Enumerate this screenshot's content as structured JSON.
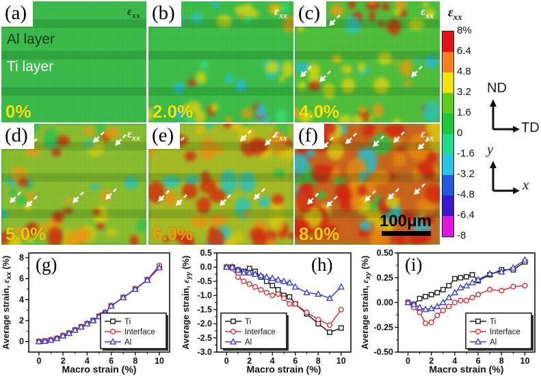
{
  "figure": {
    "eps_symbol": "ε",
    "eps_sub": "xx",
    "panels": [
      {
        "id": "a",
        "label": "(a)",
        "strain": "0%",
        "al_label": "Al layer",
        "ti_label": "Ti layer"
      },
      {
        "id": "b",
        "label": "(b)",
        "strain": "2.0%"
      },
      {
        "id": "c",
        "label": "(c)",
        "strain": "4.0%"
      },
      {
        "id": "d",
        "label": "(d)",
        "strain": "5.0%"
      },
      {
        "id": "e",
        "label": "(e)",
        "strain": "6.0%"
      },
      {
        "id": "f",
        "label": "(f)",
        "strain": "8.0%",
        "scale_bar_label": "100μm"
      }
    ]
  },
  "colorbar": {
    "title_symbol": "ε",
    "title_sub": "xx",
    "tick_labels": [
      "8%",
      "6.4",
      "4.8",
      "3.2",
      "1.6",
      "0",
      "-1.6",
      "-3.2",
      "-4.8",
      "-6.4",
      "-8"
    ],
    "segment_colors": [
      "#e41318",
      "#f5821e",
      "#f2e50f",
      "#5ecd1f",
      "#1fc83a",
      "#21dd8b",
      "#2ac4e2",
      "#2559e0",
      "#3a17cf",
      "#de17de"
    ]
  },
  "directions": {
    "up": "ND",
    "right": "TD",
    "axis_y": "y",
    "axis_x": "x"
  },
  "chart_data": [
    {
      "type": "line",
      "panel_label": "(g)",
      "panel_label_pos": "tl",
      "xlabel": "Macro strain (%)",
      "ylabel_prefix": "Average strain, ",
      "ylabel_symbol": "ε",
      "ylabel_sub": "xx",
      "ylabel_suffix": " (%)",
      "xlim": [
        -0.85,
        10.85
      ],
      "ylim": [
        -1.0,
        8.45
      ],
      "xtick_values": [
        0,
        2,
        4,
        6,
        8,
        10
      ],
      "xtick_labels": [
        "0",
        "2",
        "4",
        "6",
        "8",
        "10"
      ],
      "x_minor": [
        1,
        3,
        5,
        7,
        9
      ],
      "ytick_values": [
        0,
        2,
        4,
        6,
        8
      ],
      "ytick_labels": [
        "0",
        "2",
        "4",
        "6",
        "8"
      ],
      "y_minor": [
        1,
        3,
        5,
        7
      ],
      "x": [
        0,
        0.5,
        1,
        1.5,
        2,
        2.5,
        3,
        3.5,
        4,
        4.5,
        5,
        5.5,
        6,
        7,
        8,
        9,
        10
      ],
      "series": [
        {
          "name": "Ti",
          "color": "#1a1a1a",
          "marker": "square",
          "values": [
            0,
            0.05,
            0.15,
            0.3,
            0.55,
            0.8,
            1.1,
            1.4,
            1.7,
            2.0,
            2.4,
            2.75,
            3.4,
            4.2,
            5.0,
            5.9,
            7.1
          ]
        },
        {
          "name": "Interface",
          "color": "#d62e3c",
          "marker": "circle",
          "values": [
            0,
            0.05,
            0.15,
            0.3,
            0.55,
            0.8,
            1.1,
            1.4,
            1.7,
            2.0,
            2.4,
            2.75,
            3.4,
            4.2,
            5.0,
            5.9,
            7.25
          ]
        },
        {
          "name": "Al",
          "color": "#3b3bd0",
          "marker": "triangle",
          "values": [
            0,
            0.05,
            0.15,
            0.3,
            0.55,
            0.8,
            1.1,
            1.4,
            1.7,
            2.0,
            2.4,
            2.75,
            3.4,
            4.2,
            5.0,
            5.85,
            7.05
          ]
        }
      ],
      "legend_position": "bottom-right",
      "grid": false
    },
    {
      "type": "line",
      "panel_label": "(h)",
      "panel_label_pos": "tr",
      "xlabel": "Macro strain (%)",
      "ylabel_prefix": "Average strain, ",
      "ylabel_symbol": "ε",
      "ylabel_sub": "yy",
      "ylabel_suffix": " (%)",
      "xlim": [
        -0.85,
        10.85
      ],
      "ylim": [
        -3.0,
        0.5
      ],
      "xtick_values": [
        0,
        2,
        4,
        6,
        8,
        10
      ],
      "xtick_labels": [
        "0",
        "2",
        "4",
        "6",
        "8",
        "10"
      ],
      "x_minor": [
        1,
        3,
        5,
        7,
        9
      ],
      "ytick_values": [
        0.5,
        0.0,
        -0.5,
        -1.0,
        -1.5,
        -2.0,
        -2.5,
        -3.0
      ],
      "ytick_labels": [
        "0.5",
        "0.0",
        "-0.5",
        "-1.0",
        "-1.5",
        "-2.0",
        "-2.5",
        "-3.0"
      ],
      "y_minor": [
        0.25,
        -0.25,
        -0.75,
        -1.25,
        -1.75,
        -2.25,
        -2.75
      ],
      "x": [
        0,
        0.5,
        1,
        1.5,
        2,
        2.5,
        3,
        3.5,
        4,
        4.5,
        5,
        5.5,
        6,
        7,
        8,
        9,
        10
      ],
      "series": [
        {
          "name": "Ti",
          "color": "#1a1a1a",
          "marker": "square",
          "values": [
            0,
            0,
            -0.1,
            -0.15,
            -0.05,
            -0.15,
            -0.35,
            -0.5,
            -0.65,
            -0.8,
            -1.0,
            -1.05,
            -1.3,
            -1.65,
            -2.0,
            -2.3,
            -2.15
          ]
        },
        {
          "name": "Interface",
          "color": "#d62e3c",
          "marker": "circle",
          "values": [
            0,
            -0.05,
            -0.35,
            -0.5,
            -0.6,
            -0.7,
            -0.8,
            -0.9,
            -1.0,
            -0.95,
            -1.1,
            -1.3,
            -1.3,
            -1.6,
            -1.85,
            -2.05,
            -1.5
          ]
        },
        {
          "name": "Al",
          "color": "#3b3bd0",
          "marker": "triangle",
          "values": [
            0,
            0,
            -0.1,
            -0.2,
            -0.2,
            -0.25,
            -0.3,
            -0.35,
            -0.4,
            -0.45,
            -0.5,
            -0.55,
            -0.7,
            -0.9,
            -0.95,
            -1.1,
            -0.7
          ]
        }
      ],
      "legend_position": "bottom-left",
      "grid": false
    },
    {
      "type": "line",
      "panel_label": "(i)",
      "panel_label_pos": "tl",
      "xlabel": "Macro strain (%)",
      "ylabel_prefix": "Average strain, ",
      "ylabel_symbol": "ε",
      "ylabel_sub": "xy",
      "ylabel_suffix": " (%)",
      "xlim": [
        -0.85,
        10.85
      ],
      "ylim": [
        -0.5,
        0.5
      ],
      "xtick_values": [
        0,
        2,
        4,
        6,
        8,
        10
      ],
      "xtick_labels": [
        "0",
        "2",
        "4",
        "6",
        "8",
        "10"
      ],
      "x_minor": [
        1,
        3,
        5,
        7,
        9
      ],
      "ytick_values": [
        0.5,
        0.25,
        0.0,
        -0.25,
        -0.5
      ],
      "ytick_labels": [
        "0.50",
        "0.25",
        "0.00",
        "-0.25",
        "-0.50"
      ],
      "y_minor": [
        0.375,
        0.125,
        -0.125,
        -0.375
      ],
      "x": [
        0,
        0.5,
        1,
        1.5,
        2,
        2.5,
        3,
        3.5,
        4,
        4.5,
        5,
        5.5,
        6,
        7,
        8,
        9,
        10
      ],
      "series": [
        {
          "name": "Ti",
          "color": "#1a1a1a",
          "marker": "square",
          "values": [
            0,
            -0.02,
            0.04,
            0.06,
            0.08,
            0.1,
            0.13,
            0.17,
            0.24,
            0.25,
            0.26,
            0.28,
            0.22,
            0.28,
            0.33,
            0.33,
            0.41
          ]
        },
        {
          "name": "Interface",
          "color": "#d62e3c",
          "marker": "circle",
          "values": [
            0,
            -0.05,
            -0.1,
            -0.21,
            -0.2,
            -0.13,
            -0.08,
            -0.04,
            0,
            0.02,
            0.02,
            0.05,
            0.08,
            0.13,
            0.12,
            0.16,
            0.17
          ]
        },
        {
          "name": "Al",
          "color": "#3b3bd0",
          "marker": "triangle",
          "values": [
            0,
            -0.02,
            -0.05,
            -0.07,
            -0.06,
            -0.04,
            0,
            0.05,
            0.1,
            0.15,
            0.17,
            0.2,
            0.23,
            0.29,
            0.31,
            0.35,
            0.43
          ]
        }
      ],
      "legend_position": "bottom-right",
      "grid": false
    }
  ]
}
